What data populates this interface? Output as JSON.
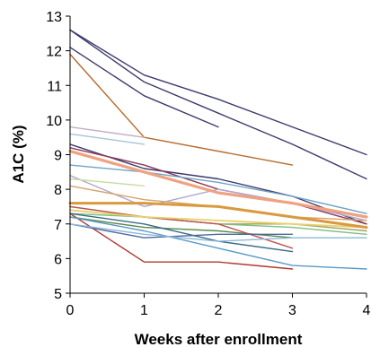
{
  "chart_data": {
    "type": "line",
    "title": "",
    "xlabel": "Weeks after enrollment",
    "ylabel": "A1C (%)",
    "xlim": [
      0,
      4
    ],
    "ylim": [
      5,
      13
    ],
    "x_ticks": [
      "0",
      "1",
      "2",
      "3",
      "4"
    ],
    "y_ticks": [
      "5",
      "6",
      "7",
      "8",
      "9",
      "10",
      "11",
      "12",
      "13"
    ],
    "grid": false,
    "legend": "none",
    "series": [
      {
        "color": "#3d3a6e",
        "width": 1.4,
        "x": [
          0,
          1,
          2,
          3,
          4
        ],
        "y": [
          12.6,
          11.3,
          10.6,
          9.8,
          9.0
        ]
      },
      {
        "color": "#3d3a6e",
        "width": 1.4,
        "x": [
          0,
          1,
          2,
          3,
          4
        ],
        "y": [
          12.6,
          11.1,
          10.2,
          9.3,
          8.3
        ]
      },
      {
        "color": "#3d3a6e",
        "width": 1.4,
        "x": [
          0,
          1,
          2
        ],
        "y": [
          12.1,
          10.7,
          9.8
        ]
      },
      {
        "color": "#b86a2a",
        "width": 1.4,
        "x": [
          0,
          1,
          3
        ],
        "y": [
          11.9,
          9.5,
          8.7
        ]
      },
      {
        "color": "#c4aec8",
        "width": 1.4,
        "x": [
          0,
          1
        ],
        "y": [
          9.8,
          9.5
        ]
      },
      {
        "color": "#a7c2dc",
        "width": 1.4,
        "x": [
          0,
          1
        ],
        "y": [
          9.6,
          9.3
        ]
      },
      {
        "color": "#3d3a6e",
        "width": 1.4,
        "x": [
          0,
          1,
          2,
          3,
          4
        ],
        "y": [
          9.3,
          8.6,
          8.3,
          7.8,
          7.0
        ]
      },
      {
        "color": "#f0a17e",
        "width": 3.2,
        "x": [
          0,
          1,
          2,
          3,
          4
        ],
        "y": [
          9.1,
          8.5,
          7.9,
          7.6,
          7.2
        ]
      },
      {
        "color": "#8a3a5a",
        "width": 1.4,
        "x": [
          0,
          1,
          2,
          3,
          4
        ],
        "y": [
          9.2,
          8.7,
          8.0,
          7.6,
          7.0
        ]
      },
      {
        "color": "#6ea3c6",
        "width": 1.4,
        "x": [
          0,
          1,
          2,
          3,
          4
        ],
        "y": [
          8.7,
          8.5,
          8.2,
          7.8,
          7.3
        ]
      },
      {
        "color": "#b0a9cf",
        "width": 1.4,
        "x": [
          0,
          1,
          2,
          3,
          4
        ],
        "y": [
          8.4,
          7.5,
          8.0,
          7.6,
          7.1
        ]
      },
      {
        "color": "#c7dca0",
        "width": 1.4,
        "x": [
          0,
          1
        ],
        "y": [
          8.3,
          8.1
        ]
      },
      {
        "color": "#d8a36a",
        "width": 1.4,
        "x": [
          0,
          1,
          2,
          3,
          4
        ],
        "y": [
          8.1,
          7.7,
          7.5,
          7.2,
          7.1
        ]
      },
      {
        "color": "#d99a3e",
        "width": 3.0,
        "x": [
          0,
          1,
          2,
          3,
          4
        ],
        "y": [
          7.6,
          7.6,
          7.5,
          7.2,
          6.9
        ]
      },
      {
        "color": "#a0a060",
        "width": 1.4,
        "x": [
          0,
          1,
          2,
          3,
          4
        ],
        "y": [
          7.5,
          7.2,
          7.0,
          7.0,
          6.8
        ]
      },
      {
        "color": "#e8d06a",
        "width": 1.8,
        "x": [
          0,
          1,
          2,
          3,
          4
        ],
        "y": [
          7.4,
          7.2,
          7.1,
          7.0,
          6.9
        ]
      },
      {
        "color": "#7fbf7f",
        "width": 1.4,
        "x": [
          0,
          1,
          2,
          3,
          4
        ],
        "y": [
          7.3,
          7.2,
          7.0,
          6.9,
          6.7
        ]
      },
      {
        "color": "#5a8a4a",
        "width": 1.4,
        "x": [
          0,
          1,
          2,
          3
        ],
        "y": [
          7.2,
          6.9,
          6.8,
          6.6
        ]
      },
      {
        "color": "#c0504d",
        "width": 1.4,
        "x": [
          0,
          1,
          2,
          3
        ],
        "y": [
          7.5,
          7.2,
          7.0,
          6.3
        ]
      },
      {
        "color": "#b03a30",
        "width": 1.4,
        "x": [
          0,
          1,
          2,
          3
        ],
        "y": [
          7.3,
          5.9,
          5.9,
          5.7
        ]
      },
      {
        "color": "#5a9ac6",
        "width": 1.4,
        "x": [
          0,
          1,
          2,
          3,
          4
        ],
        "y": [
          7.2,
          6.8,
          6.3,
          5.8,
          5.7
        ]
      },
      {
        "color": "#4b6a9c",
        "width": 1.4,
        "x": [
          0,
          1,
          2,
          3
        ],
        "y": [
          7.0,
          6.6,
          6.7,
          6.7
        ]
      },
      {
        "color": "#3a6a8a",
        "width": 1.4,
        "x": [
          0,
          1,
          2,
          3
        ],
        "y": [
          7.3,
          7.0,
          6.5,
          6.2
        ]
      },
      {
        "color": "#8fb8d8",
        "width": 1.4,
        "x": [
          0,
          1,
          2,
          3,
          4
        ],
        "y": [
          7.0,
          6.7,
          6.5,
          6.6,
          6.6
        ]
      }
    ]
  }
}
